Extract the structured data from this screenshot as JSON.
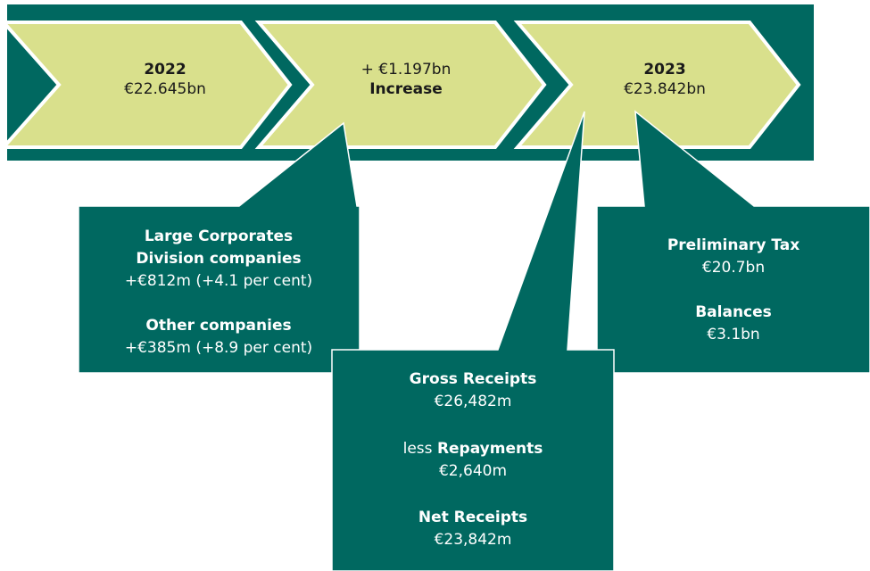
{
  "chevrons": [
    {
      "line1": "2022",
      "line2": "€22.645bn"
    },
    {
      "line1": "+ €1.197bn",
      "line2": "Increase"
    },
    {
      "line1": "2023",
      "line2": "€23.842bn"
    }
  ],
  "callouts": {
    "companies": {
      "heading1": "Large Corporates",
      "heading2": "Division companies",
      "detail1": "+€812m (+4.1 per cent)",
      "heading3": "Other companies",
      "detail2": "+€385m (+8.9 per cent)"
    },
    "receipts": {
      "gross_label": "Gross Receipts",
      "gross_value": "€26,482m",
      "less": "less",
      "repay_label": "Repayments",
      "repay_value": "€2,640m",
      "net_label": "Net Receipts",
      "net_value": "€23,842m"
    },
    "types": {
      "prelim_label": "Preliminary Tax",
      "prelim_value": "€20.7bn",
      "balances_label": "Balances",
      "balances_value": "€3.1bn"
    }
  }
}
